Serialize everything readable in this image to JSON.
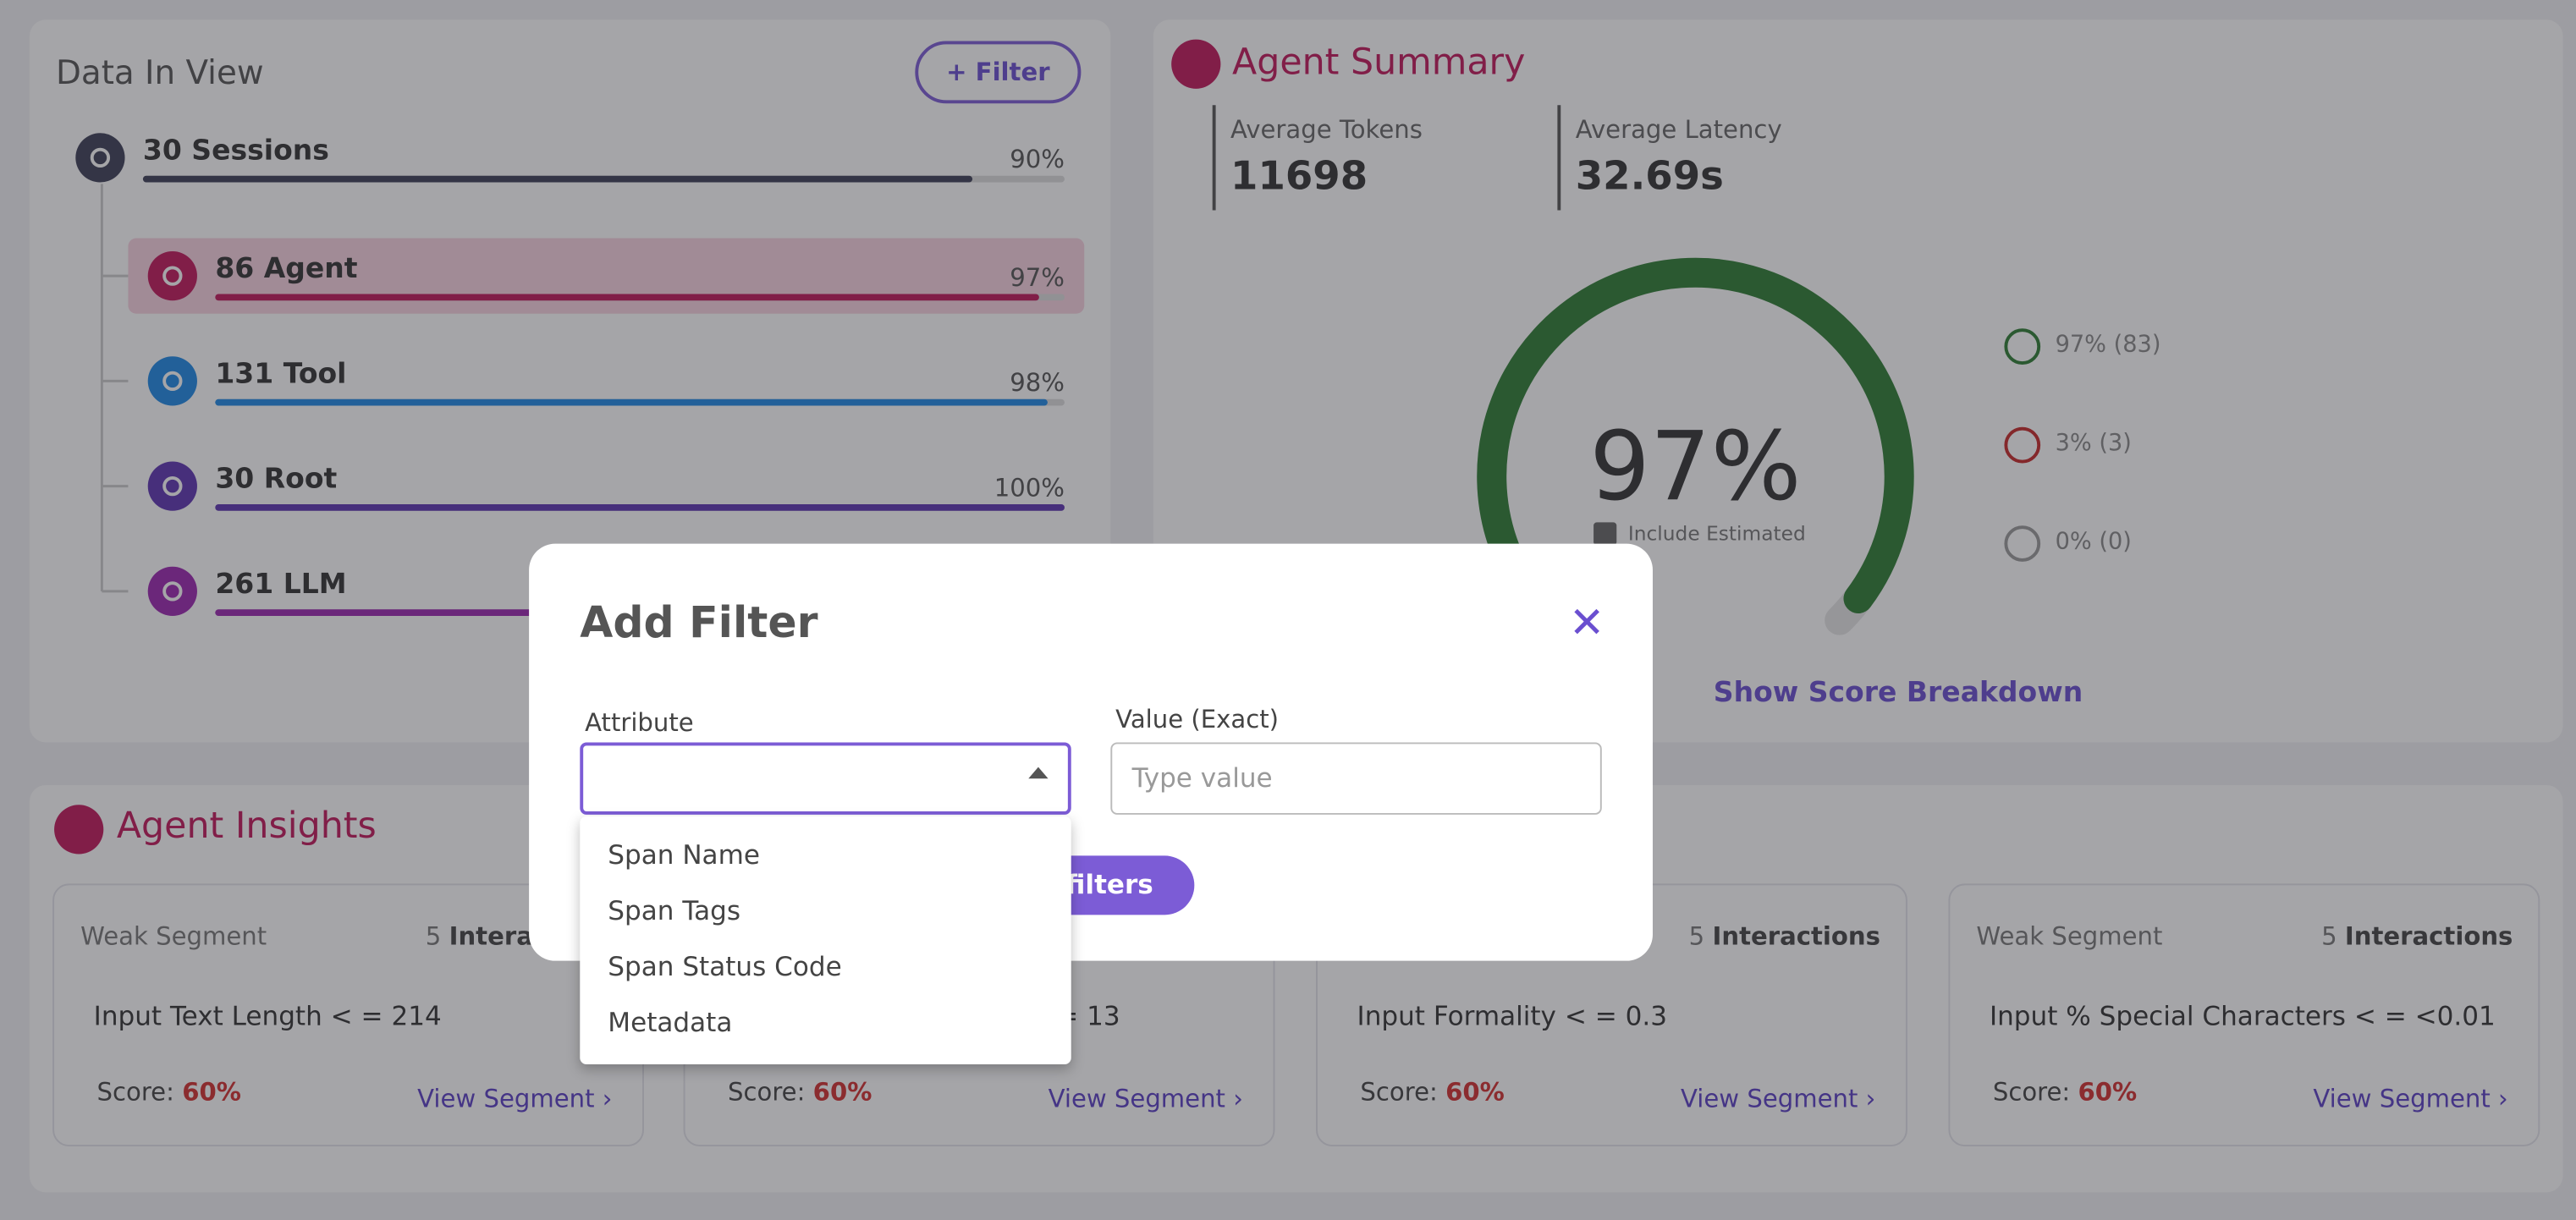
{
  "data_in_view": {
    "title": "Data In View",
    "filter_button": "+ Filter",
    "rows": [
      {
        "label": "30 Sessions",
        "percent": {
          "value": 90,
          "label": "90%"
        }
      },
      {
        "label": "86 Agent",
        "percent": {
          "value": 97,
          "label": "97%"
        }
      },
      {
        "label": "131 Tool",
        "percent": {
          "value": 98,
          "label": "98%"
        }
      },
      {
        "label": "30 Root",
        "percent": {
          "value": 100,
          "label": "100%"
        }
      },
      {
        "label": "261 LLM"
      }
    ]
  },
  "agent_summary": {
    "title": "Agent Summary",
    "metrics": [
      {
        "label": "Average Tokens",
        "value": "11698"
      },
      {
        "label": "Average Latency",
        "value": "32.69s"
      }
    ],
    "score": {
      "value": 97,
      "label": "97%"
    },
    "include_estimated": "Include Estimated",
    "feedback": [
      "97% (83)",
      "3% (3)",
      "0% (0)"
    ],
    "show_breakdown": "Show Score Breakdown"
  },
  "agent_insights": {
    "title": "Agent Insights",
    "cards": [
      {
        "segment": "Weak Segment",
        "count": "5",
        "count_unit": "Interactions",
        "condition": "Input Text Length < = 214",
        "score_label": "Score:",
        "score": "60%",
        "link": "View Segment ›"
      },
      {
        "condition": "= 13",
        "score_label": "Score:",
        "score": "60%",
        "link": "View Segment ›"
      },
      {
        "count": "5",
        "count_unit": "Interactions",
        "condition": "Input Formality < = 0.3",
        "score_label": "Score:",
        "score": "60%",
        "link": "View Segment ›"
      },
      {
        "segment": "Weak Segment",
        "count": "5",
        "count_unit": "Interactions",
        "condition": "Input % Special Characters < = <0.01",
        "score_label": "Score:",
        "score": "60%",
        "link": "View Segment ›"
      }
    ]
  },
  "modal": {
    "title": "Add Filter",
    "attribute_label": "Attribute",
    "value_label": "Value (Exact)",
    "value_placeholder": "Type value",
    "submit": "Add filters",
    "options": [
      "Span Name",
      "Span Tags",
      "Span Status Code",
      "Metadata"
    ]
  }
}
